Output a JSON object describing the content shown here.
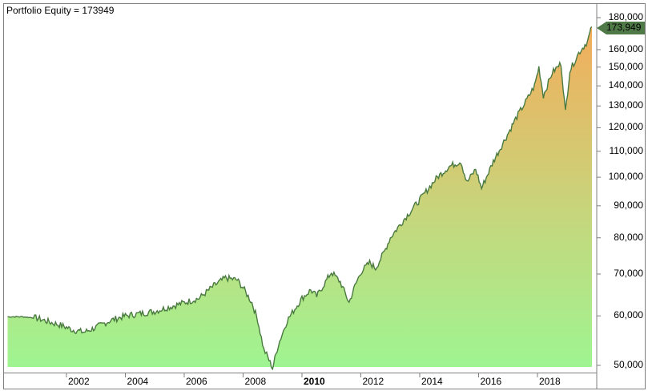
{
  "title": "Portfolio Equity = 173949",
  "last_value_badge": "173,949",
  "colors": {
    "line": "#4a7a40",
    "fill_bottom": "#9ef592",
    "fill_mid": "#c6d67c",
    "fill_top": "#f3ad5c",
    "badge": "#4f7a47",
    "frame": "#7f7f7f"
  },
  "y_axis": {
    "scale": "log",
    "ticks": [
      {
        "label": "180,000",
        "value": 180000
      },
      {
        "label": "160,000",
        "value": 160000
      },
      {
        "label": "150,000",
        "value": 150000
      },
      {
        "label": "140,000",
        "value": 140000
      },
      {
        "label": "130,000",
        "value": 130000
      },
      {
        "label": "120,000",
        "value": 120000
      },
      {
        "label": "110,000",
        "value": 110000
      },
      {
        "label": "100,000",
        "value": 100000
      },
      {
        "label": "90,000",
        "value": 90000
      },
      {
        "label": "80,000",
        "value": 80000
      },
      {
        "label": "70,000",
        "value": 70000
      },
      {
        "label": "60,000",
        "value": 60000
      },
      {
        "label": "50,000",
        "value": 50000
      }
    ]
  },
  "x_axis": {
    "ticks": [
      {
        "label": "2002",
        "bold": false
      },
      {
        "label": "2004",
        "bold": false
      },
      {
        "label": "2006",
        "bold": false
      },
      {
        "label": "2008",
        "bold": false
      },
      {
        "label": "2010",
        "bold": true
      },
      {
        "label": "2012",
        "bold": false
      },
      {
        "label": "2014",
        "bold": false
      },
      {
        "label": "2016",
        "bold": false
      },
      {
        "label": "2018",
        "bold": false
      }
    ]
  },
  "chart_data": {
    "type": "area",
    "title": "Portfolio Equity = 173949",
    "xlabel": "",
    "ylabel": "",
    "y_scale": "log",
    "ylim": [
      49000,
      185000
    ],
    "xlim": [
      2000.0,
      2019.9
    ],
    "grid": false,
    "legend": "none",
    "last_value": 173949,
    "x": [
      2000.0,
      2000.5,
      2001.0,
      2001.5,
      2001.8,
      2002.2,
      2002.6,
      2003.0,
      2003.5,
      2004.0,
      2004.5,
      2005.0,
      2005.5,
      2006.0,
      2006.5,
      2007.0,
      2007.4,
      2007.8,
      2008.0,
      2008.3,
      2008.5,
      2008.7,
      2008.8,
      2009.0,
      2009.2,
      2009.5,
      2009.8,
      2010.0,
      2010.3,
      2010.5,
      2010.8,
      2011.0,
      2011.3,
      2011.6,
      2011.8,
      2012.0,
      2012.3,
      2012.5,
      2012.8,
      2013.0,
      2013.5,
      2014.0,
      2014.3,
      2014.6,
      2015.0,
      2015.4,
      2015.6,
      2015.9,
      2016.1,
      2016.5,
      2016.9,
      2017.3,
      2017.6,
      2017.9,
      2018.05,
      2018.2,
      2018.5,
      2018.8,
      2018.95,
      2019.1,
      2019.4,
      2019.7,
      2019.85
    ],
    "values": [
      59800,
      59800,
      59500,
      58500,
      58000,
      57000,
      56500,
      57500,
      59000,
      60000,
      60500,
      61000,
      62000,
      63000,
      64000,
      67000,
      69000,
      68500,
      66500,
      63000,
      59000,
      53000,
      52000,
      49500,
      54000,
      59000,
      62000,
      64000,
      66000,
      64500,
      68000,
      70500,
      68000,
      63000,
      67000,
      70500,
      73000,
      71500,
      76000,
      80000,
      86000,
      92000,
      96000,
      100000,
      104000,
      106000,
      98000,
      103000,
      96000,
      106000,
      115000,
      125000,
      132000,
      140000,
      150000,
      135000,
      147000,
      152000,
      127000,
      148000,
      158000,
      165000,
      173949
    ]
  }
}
